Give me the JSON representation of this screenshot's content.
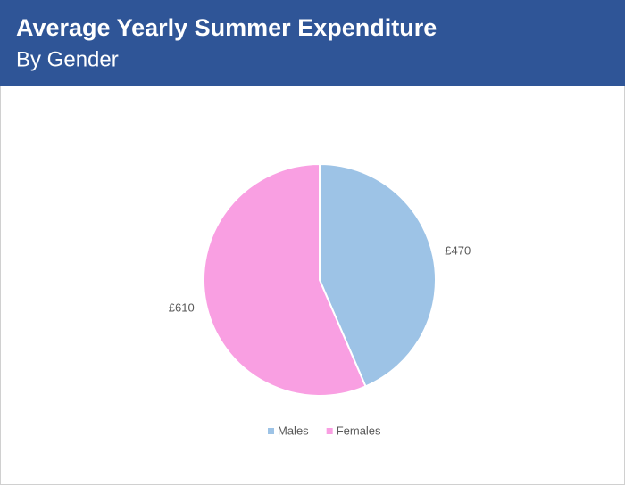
{
  "chart_data": {
    "type": "pie",
    "title": "Average Yearly Summer Expenditure",
    "subtitle": "By Gender",
    "categories": [
      "Males",
      "Females"
    ],
    "values": [
      470,
      610
    ],
    "value_labels": [
      "£470",
      "£610"
    ],
    "colors": [
      "#9dc3e6",
      "#f99fe2"
    ],
    "legend": "bottom"
  }
}
